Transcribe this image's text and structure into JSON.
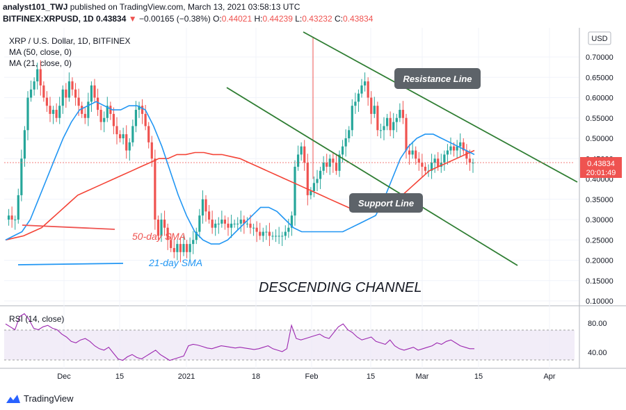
{
  "header": {
    "line1_user": "analyst101_TWJ",
    "line1_rest": " published on TradingView.com, March 13, 2021 03:58:13 UTC",
    "symbol": "BITFINEX:XRPUSD, 1D",
    "price": "0.43834",
    "change": "−0.00165 (−0.38%)",
    "o_label": "O:",
    "o_val": "0.44021",
    "h_label": "H:",
    "h_val": "0.44239",
    "l_label": "L:",
    "l_val": "0.43232",
    "c_label": "C:",
    "c_val": "0.43834",
    "legend_main": "XRP / U.S. Dollar, 1D, BITFINEX",
    "legend_ma50": "MA (50, close, 0)",
    "legend_ma21": "MA (21, close, 0)"
  },
  "annotations": {
    "resistance": "Resistance Line",
    "support": "Support Line",
    "sma50": "50-day SMA",
    "sma21": "21-day SMA",
    "channel": "DESCENDING CHANNEL"
  },
  "price_axis": {
    "currency": "USD",
    "last_price": "0.43834",
    "countdown": "20:01:49"
  },
  "rsi": {
    "legend": "RSI (14, close)",
    "ticks": [
      "80.00",
      "40.00"
    ]
  },
  "brand": "TradingView",
  "colors": {
    "up": "#26a69a",
    "down": "#ef5350",
    "ma50": "#f44336",
    "ma21": "#2196f3",
    "channel": "#2e7d32",
    "rsi": "#9c27b0"
  },
  "chart_data": {
    "type": "candlestick",
    "title": "XRP / U.S. Dollar, 1D, BITFINEX",
    "ylim": [
      0.1,
      0.75
    ],
    "y_ticks": [
      0.1,
      0.15,
      0.2,
      0.25,
      0.3,
      0.35,
      0.4,
      0.45,
      0.5,
      0.55,
      0.6,
      0.65,
      0.7
    ],
    "x_tick_labels": [
      "Dec",
      "15",
      "2021",
      "18",
      "Feb",
      "15",
      "Mar",
      "15",
      "Apr"
    ],
    "close_series": [
      0.3,
      0.31,
      0.3,
      0.3,
      0.36,
      0.45,
      0.52,
      0.6,
      0.62,
      0.64,
      0.67,
      0.63,
      0.6,
      0.58,
      0.56,
      0.57,
      0.55,
      0.58,
      0.62,
      0.6,
      0.64,
      0.62,
      0.6,
      0.58,
      0.56,
      0.55,
      0.59,
      0.63,
      0.6,
      0.57,
      0.54,
      0.55,
      0.58,
      0.56,
      0.53,
      0.51,
      0.5,
      0.51,
      0.47,
      0.49,
      0.53,
      0.57,
      0.58,
      0.56,
      0.53,
      0.49,
      0.45,
      0.3,
      0.26,
      0.3,
      0.28,
      0.25,
      0.23,
      0.22,
      0.24,
      0.22,
      0.24,
      0.22,
      0.24,
      0.25,
      0.27,
      0.31,
      0.35,
      0.32,
      0.3,
      0.28,
      0.29,
      0.29,
      0.3,
      0.29,
      0.28,
      0.29,
      0.29,
      0.29,
      0.3,
      0.29,
      0.29,
      0.28,
      0.28,
      0.27,
      0.26,
      0.27,
      0.27,
      0.26,
      0.26,
      0.26,
      0.26,
      0.26,
      0.27,
      0.28,
      0.31,
      0.43,
      0.46,
      0.48,
      0.44,
      0.36,
      0.37,
      0.39,
      0.4,
      0.42,
      0.44,
      0.43,
      0.45,
      0.44,
      0.42,
      0.46,
      0.48,
      0.5,
      0.52,
      0.58,
      0.59,
      0.61,
      0.63,
      0.64,
      0.6,
      0.56,
      0.58,
      0.52,
      0.52,
      0.53,
      0.55,
      0.52,
      0.54,
      0.55,
      0.57,
      0.55,
      0.47,
      0.46,
      0.47,
      0.45,
      0.44,
      0.43,
      0.42,
      0.42,
      0.44,
      0.45,
      0.43,
      0.44,
      0.46,
      0.47,
      0.48,
      0.47,
      0.48,
      0.49,
      0.47,
      0.45,
      0.44,
      0.44
    ],
    "ma50_series": [
      0.25,
      0.255,
      0.26,
      0.27,
      0.28,
      0.3,
      0.32,
      0.34,
      0.36,
      0.37,
      0.38,
      0.39,
      0.4,
      0.41,
      0.42,
      0.43,
      0.44,
      0.45,
      0.45,
      0.46,
      0.46,
      0.465,
      0.465,
      0.46,
      0.46,
      0.455,
      0.45,
      0.44,
      0.43,
      0.42,
      0.41,
      0.4,
      0.39,
      0.38,
      0.37,
      0.36,
      0.35,
      0.34,
      0.33,
      0.32,
      0.32,
      0.32,
      0.33,
      0.34,
      0.36,
      0.38,
      0.4,
      0.42,
      0.43,
      0.44,
      0.45,
      0.46,
      0.47
    ],
    "ma21_series": [
      0.25,
      0.26,
      0.27,
      0.3,
      0.35,
      0.4,
      0.45,
      0.5,
      0.54,
      0.57,
      0.58,
      0.59,
      0.58,
      0.57,
      0.57,
      0.58,
      0.58,
      0.57,
      0.53,
      0.48,
      0.42,
      0.36,
      0.31,
      0.27,
      0.25,
      0.24,
      0.24,
      0.25,
      0.27,
      0.29,
      0.31,
      0.33,
      0.33,
      0.32,
      0.3,
      0.28,
      0.27,
      0.27,
      0.27,
      0.27,
      0.27,
      0.27,
      0.28,
      0.29,
      0.3,
      0.31,
      0.35,
      0.4,
      0.45,
      0.48,
      0.5,
      0.51,
      0.51,
      0.5,
      0.49,
      0.48,
      0.47,
      0.46
    ],
    "rsi_ylim": [
      20,
      100
    ],
    "rsi_series": [
      78,
      74,
      70,
      88,
      92,
      84,
      72,
      70,
      74,
      76,
      72,
      70,
      64,
      60,
      54,
      52,
      56,
      58,
      54,
      48,
      44,
      42,
      46,
      38,
      30,
      28,
      33,
      36,
      32,
      30,
      34,
      38,
      42,
      36,
      32,
      28,
      30,
      32,
      34,
      48,
      50,
      49,
      47,
      45,
      44,
      46,
      48,
      47,
      46,
      45,
      46,
      45,
      44,
      43,
      44,
      46,
      48,
      44,
      42,
      40,
      44,
      76,
      58,
      56,
      58,
      60,
      62,
      64,
      60,
      58,
      66,
      74,
      78,
      70,
      66,
      60,
      56,
      58,
      60,
      54,
      52,
      50,
      56,
      48,
      44,
      42,
      44,
      46,
      42,
      44,
      46,
      48,
      52,
      50,
      54,
      56,
      52,
      48,
      46,
      44,
      44
    ]
  }
}
